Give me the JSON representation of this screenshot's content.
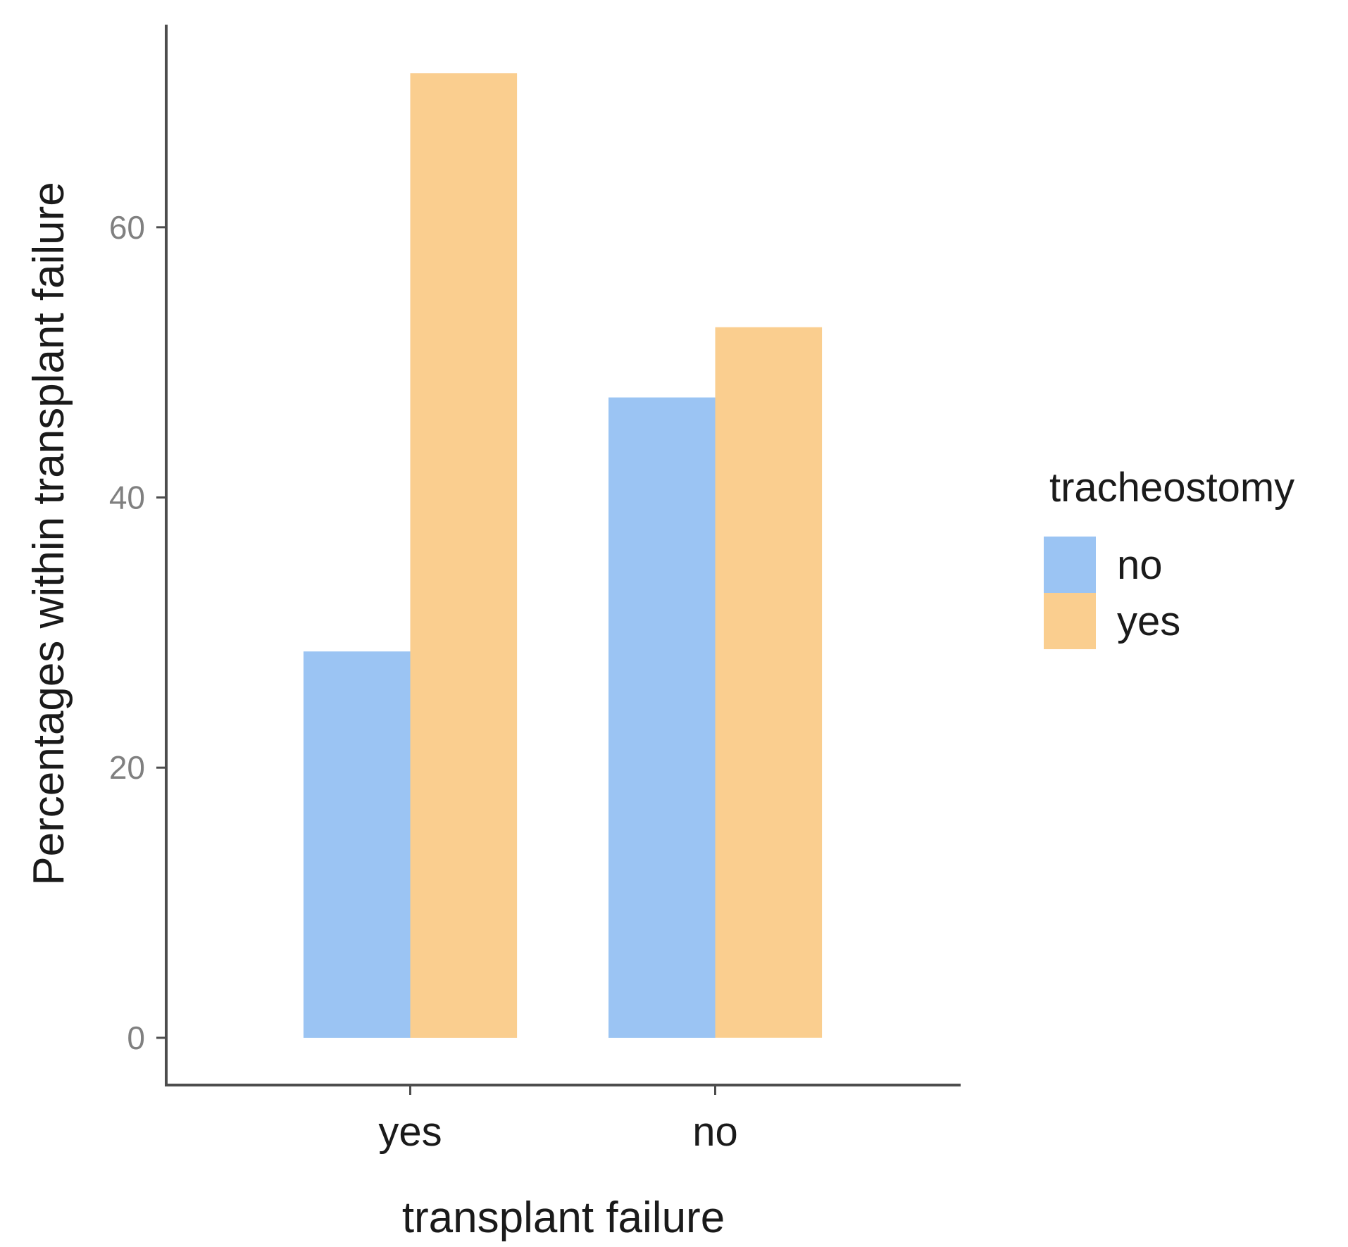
{
  "chart_data": {
    "type": "bar",
    "title": "",
    "xlabel": "transplant failure",
    "ylabel": "Percentages within transplant failure",
    "categories": [
      "yes",
      "no"
    ],
    "series": [
      {
        "name": "no",
        "values": [
          28.6,
          47.4
        ],
        "color": "#9BC4F3"
      },
      {
        "name": "yes",
        "values": [
          71.4,
          52.6
        ],
        "color": "#FACE8F"
      }
    ],
    "ylim": [
      -3.5,
      75
    ],
    "yticks": [
      0,
      20,
      40,
      60
    ],
    "ytick_labels": [
      "0",
      "20",
      "40",
      "60"
    ],
    "grid": false,
    "legend": {
      "title": "tracheostomy",
      "placement": "right",
      "entries": [
        "no",
        "yes"
      ]
    }
  }
}
